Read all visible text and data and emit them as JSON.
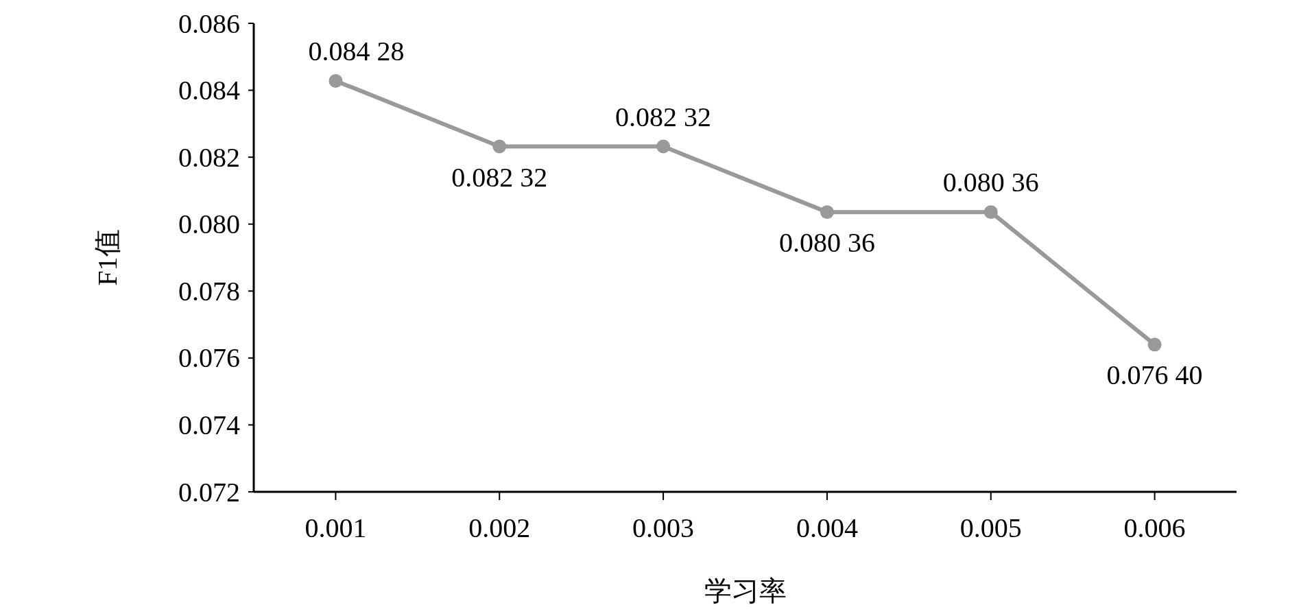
{
  "chart_data": {
    "type": "line",
    "xlabel": "学习率",
    "ylabel": "F1值",
    "categories": [
      "0.001",
      "0.002",
      "0.003",
      "0.004",
      "0.005",
      "0.006"
    ],
    "values": [
      0.08428,
      0.08232,
      0.08232,
      0.08036,
      0.08036,
      0.0764
    ],
    "value_labels": [
      "0.084 28",
      "0.082 32",
      "0.082 32",
      "0.080 36",
      "0.080 36",
      "0.076 40"
    ],
    "color": "#999999",
    "marker": "circle",
    "line_style": "solid",
    "ylim": [
      0.072,
      0.086
    ],
    "yticks": [
      0.072,
      0.074,
      0.076,
      0.078,
      {
        "value": 0.08,
        "label": "0.080"
      },
      0.082,
      0.084,
      0.086
    ]
  }
}
